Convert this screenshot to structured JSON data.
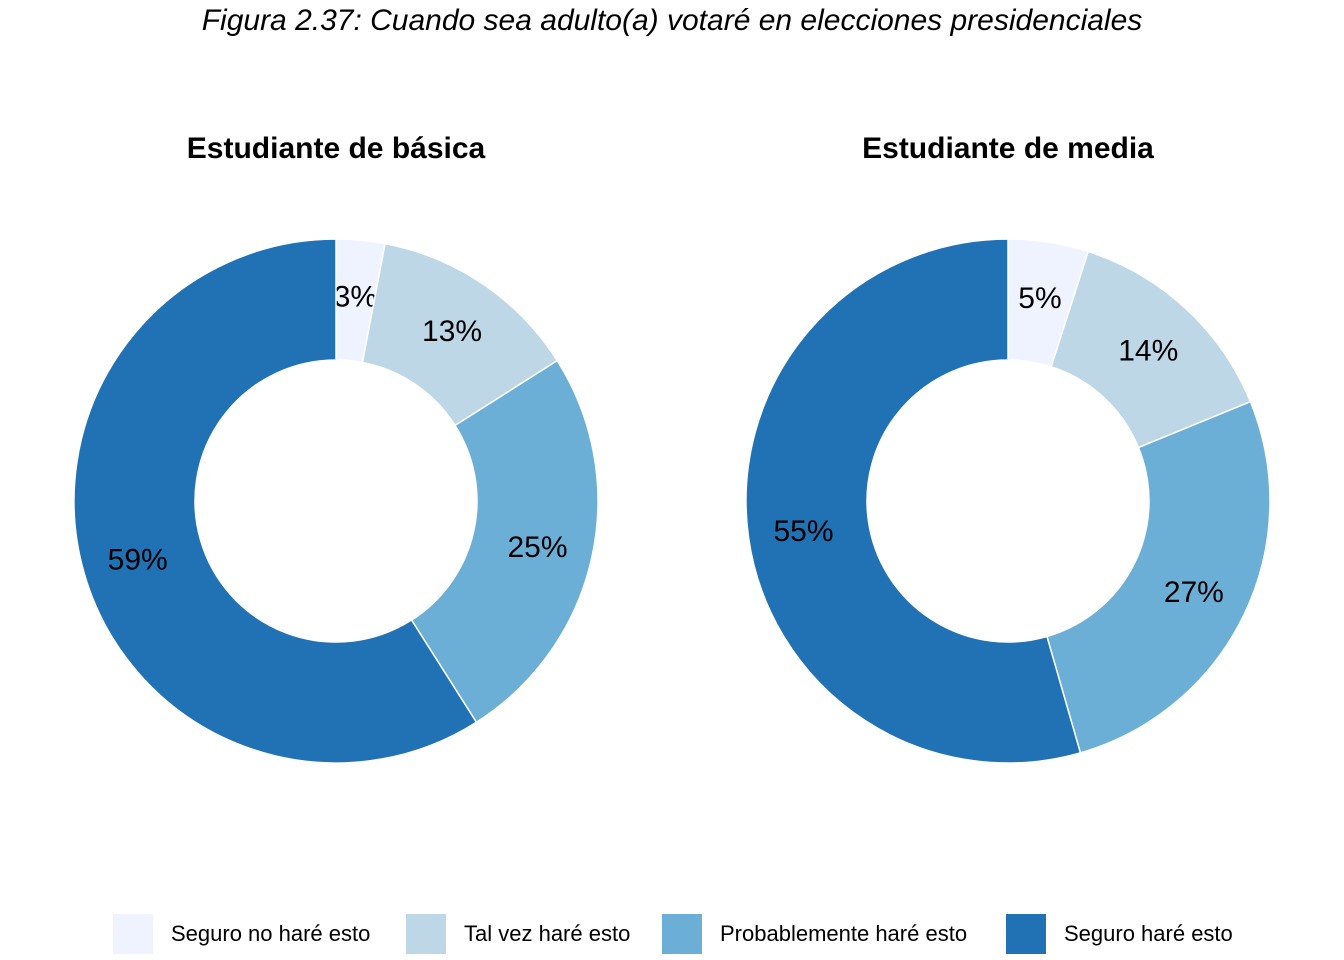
{
  "figure_title": "Figura 2.37: Cuando sea adulto(a) votaré en elecciones presidenciales",
  "chart_data": [
    {
      "type": "pie",
      "title": "Estudiante de básica",
      "categories": [
        "Seguro no haré esto",
        "Tal vez haré esto",
        "Probablemente haré esto",
        "Seguro haré esto"
      ],
      "values": [
        3,
        13,
        25,
        59
      ],
      "labels": [
        "3%",
        "13%",
        "25%",
        "59%"
      ]
    },
    {
      "type": "pie",
      "title": "Estudiante de media",
      "categories": [
        "Seguro no haré esto",
        "Tal vez haré esto",
        "Probablemente haré esto",
        "Seguro haré esto"
      ],
      "values": [
        5,
        14,
        27,
        55
      ],
      "labels": [
        "5%",
        "14%",
        "27%",
        "55%"
      ]
    }
  ],
  "legend": [
    {
      "label": "Seguro no haré esto",
      "color": "#eff3ff"
    },
    {
      "label": "Tal vez haré esto",
      "color": "#bdd7e7"
    },
    {
      "label": "Probablemente haré esto",
      "color": "#6baed6"
    },
    {
      "label": "Seguro haré esto",
      "color": "#2171b5"
    }
  ]
}
